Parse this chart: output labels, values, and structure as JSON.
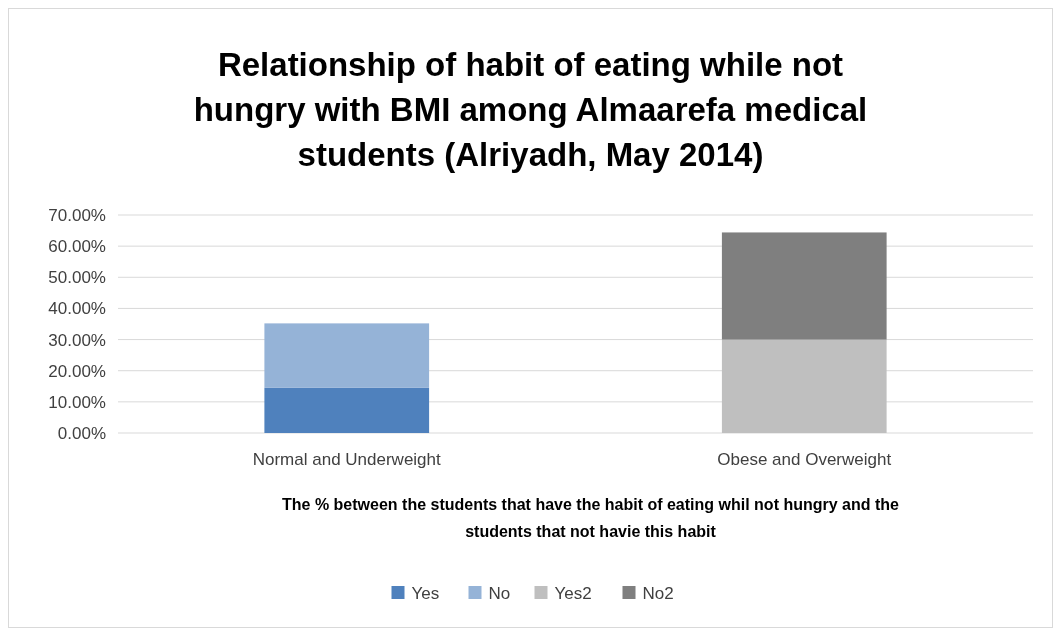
{
  "chart_data": {
    "type": "bar",
    "title": "Relationship of habit of eating while not hungry with BMI among Almaarefa medical students (Alriyadh, May 2014)",
    "xlabel": "The % between the students that have the habit of eating whil not hungry and the students that not havie this habit",
    "categories": [
      "Normal and Underweight",
      "Obese and Overweight"
    ],
    "series": [
      {
        "name": "Yes",
        "color": "#4f81bd",
        "values": [
          14.5,
          null
        ]
      },
      {
        "name": "No",
        "color": "#95b3d7",
        "values": [
          20.7,
          null
        ]
      },
      {
        "name": "Yes2",
        "color": "#bfbfbf",
        "values": [
          null,
          30.0
        ]
      },
      {
        "name": "No2",
        "color": "#7f7f7f",
        "values": [
          null,
          34.4
        ]
      }
    ],
    "stacked": true,
    "ylim": [
      0,
      70
    ],
    "yticks": [
      {
        "value": 0,
        "label": "0.00%"
      },
      {
        "value": 10,
        "label": "10.00%"
      },
      {
        "value": 20,
        "label": "20.00%"
      },
      {
        "value": 30,
        "label": "30.00%"
      },
      {
        "value": 40,
        "label": "40.00%"
      },
      {
        "value": 50,
        "label": "50.00%"
      },
      {
        "value": 60,
        "label": "60.00%"
      },
      {
        "value": 70,
        "label": "70.00%"
      }
    ],
    "grid": "y",
    "legend": "bottom"
  }
}
